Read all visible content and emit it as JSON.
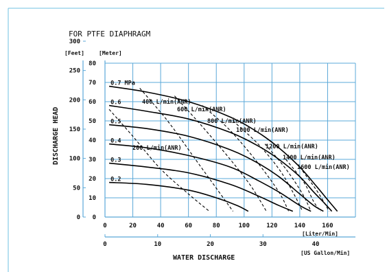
{
  "chart_data": {
    "type": "line",
    "title": "FOR PTFE DIAPHRAGM",
    "xlabel": "WATER DISCHARGE",
    "ylabel": "DISCHARGE HEAD",
    "x_units": {
      "primary": "[Liter/Min]",
      "secondary": "[US Gallon/Min]"
    },
    "y_units": {
      "feet": "[Feet]",
      "meter": "[Meter]"
    },
    "xlim": [
      0,
      180
    ],
    "ylim": [
      0,
      80
    ],
    "x_ticks_lpm": [
      "0",
      "20",
      "40",
      "60",
      "80",
      "100",
      "120",
      "140",
      "160"
    ],
    "x_ticks_gpm": [
      "0",
      "10",
      "20",
      "30",
      "40"
    ],
    "y_ticks_meter": [
      "0",
      "10",
      "20",
      "30",
      "40",
      "50",
      "60",
      "70",
      "80"
    ],
    "y_ticks_feet": [
      "0",
      "50",
      "100",
      "150",
      "200",
      "250",
      "300"
    ],
    "grid": true,
    "pressure_curves": [
      {
        "name": "0.7 MPa",
        "x": [
          3,
          30,
          60,
          90,
          110,
          125,
          140,
          152,
          160,
          167
        ],
        "y": [
          68,
          65,
          60,
          52,
          44,
          36,
          26,
          16,
          9,
          3
        ]
      },
      {
        "name": "0.6",
        "x": [
          3,
          30,
          60,
          90,
          110,
          125,
          140,
          150,
          158,
          163
        ],
        "y": [
          58,
          55,
          51,
          44,
          37,
          30,
          21,
          13,
          7,
          3
        ]
      },
      {
        "name": "0.5",
        "x": [
          3,
          30,
          60,
          90,
          110,
          125,
          140,
          150,
          157
        ],
        "y": [
          48,
          46,
          42,
          35,
          28,
          21,
          12,
          6,
          3
        ]
      },
      {
        "name": "0.4",
        "x": [
          3,
          30,
          60,
          90,
          110,
          125,
          140,
          148
        ],
        "y": [
          38,
          36,
          32,
          26,
          19,
          13,
          6,
          3
        ]
      },
      {
        "name": "0.3",
        "x": [
          3,
          30,
          60,
          90,
          110,
          125,
          135
        ],
        "y": [
          28,
          26,
          23,
          17,
          11,
          6,
          3
        ]
      },
      {
        "name": "0.2",
        "x": [
          3,
          30,
          60,
          80,
          95,
          103
        ],
        "y": [
          18,
          17,
          14,
          10,
          6,
          3
        ]
      }
    ],
    "air_consumption_curves": [
      {
        "name": "200 L/min(ANR)",
        "x": [
          3,
          20,
          40,
          60,
          75
        ],
        "y": [
          56,
          42,
          25,
          12,
          3
        ]
      },
      {
        "name": "400 L/min(ANR)",
        "x": [
          25,
          45,
          65,
          80,
          92
        ],
        "y": [
          67,
          50,
          30,
          15,
          3
        ]
      },
      {
        "name": "600 L/min(ANR)",
        "x": [
          50,
          70,
          90,
          105,
          116
        ],
        "y": [
          63,
          47,
          30,
          16,
          3
        ]
      },
      {
        "name": "800 L/min(ANR)",
        "x": [
          70,
          90,
          110,
          125,
          132
        ],
        "y": [
          58,
          45,
          28,
          13,
          3
        ]
      },
      {
        "name": "1000 L/min(ANR)",
        "x": [
          92,
          110,
          125,
          135,
          142
        ],
        "y": [
          50,
          38,
          25,
          13,
          3
        ]
      },
      {
        "name": "1200 L/min(ANR)",
        "x": [
          115,
          130,
          142,
          148
        ],
        "y": [
          38,
          25,
          12,
          3
        ]
      },
      {
        "name": "1400 L/min(ANR)",
        "x": [
          130,
          143,
          150,
          155
        ],
        "y": [
          30,
          18,
          8,
          3
        ]
      },
      {
        "name": "1600 L/min(ANR)",
        "x": [
          142,
          152,
          158,
          161
        ],
        "y": [
          24,
          14,
          7,
          3
        ]
      }
    ]
  },
  "colors": {
    "grid": "#5aa8d8",
    "curve": "#000000",
    "frame": "#6fc0e0"
  }
}
